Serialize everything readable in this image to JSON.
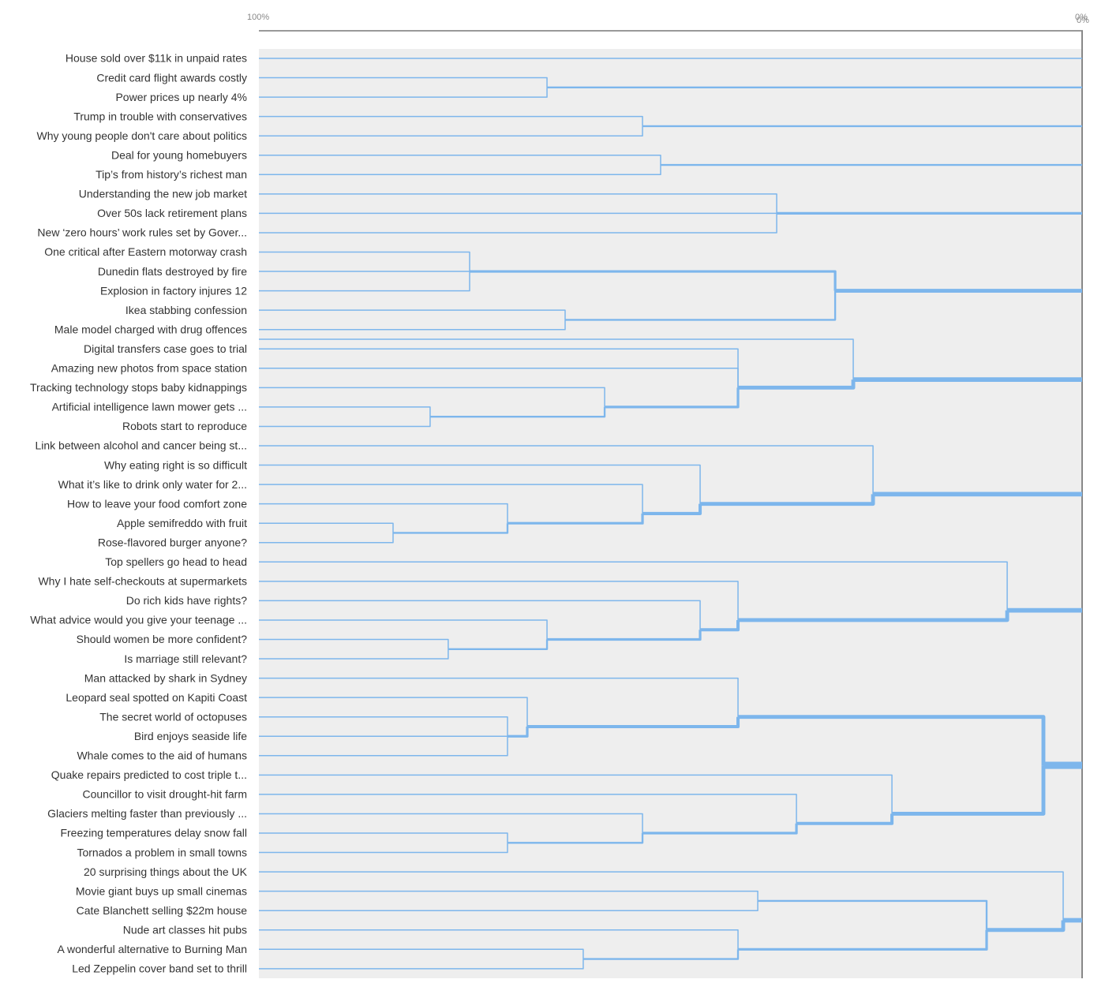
{
  "chart_data": {
    "type": "dendrogram",
    "axis": {
      "start_label": "100%",
      "end_labels": [
        "0%",
        "0%"
      ],
      "range": [
        100,
        0
      ]
    },
    "colors": {
      "link": "#7db6ec",
      "plot_background": "#eeeeee",
      "axis_line": "#999999",
      "label": "#333333"
    },
    "leaves": [
      "House sold over $11k in unpaid rates",
      "Credit card flight awards costly",
      "Power prices up nearly 4%",
      "Trump in trouble with conservatives",
      "Why young people don't care about politics",
      "Deal for young homebuyers",
      "Tip’s from history’s richest man",
      "Understanding the new job market",
      "Over 50s lack retirement plans",
      "New ‘zero hours’ work rules set by Gover...",
      "One critical after Eastern motorway crash",
      "Dunedin flats destroyed by fire",
      "Explosion in factory injures 12",
      "Ikea stabbing confession",
      "Male model charged with drug offences",
      "Digital transfers case goes to trial",
      "Amazing new photos from space station",
      "Tracking technology stops baby kidnappings",
      "Artificial intelligence lawn mower gets ...",
      "Robots start to reproduce",
      "Link between alcohol and cancer being st...",
      "Why eating right is so difficult",
      "What it’s like to drink only water for 2...",
      "How to leave your food comfort zone",
      "Apple semifreddo with fruit",
      "Rose-flavored burger anyone?",
      "Top spellers go head to head",
      "Why I hate self-checkouts at supermarkets",
      "Do rich kids have rights?",
      "What advice would you give your teenage ...",
      "Should women be more confident?",
      "Is marriage still relevant?",
      "Man attacked by shark in Sydney",
      "Leopard seal spotted on Kapiti Coast",
      "The secret world of octopuses",
      "Bird enjoys seaside life",
      "Whale comes to the aid of humans",
      "Quake repairs predicted to cost triple t...",
      "Councillor to visit drought-hit farm",
      "Glaciers melting faster than previously ...",
      "Freezing temperatures delay snow fall",
      "Tornados a problem in small towns",
      "20 surprising things about the UK",
      "Movie giant buys up small cinemas",
      "Cate Blanchett selling $22m house",
      "Nude art classes hit pubs",
      "A wonderful alternative to Burning Man",
      "Led Zeppelin cover band set to thrill"
    ],
    "merges": [
      {
        "id": "m1",
        "similarity": 65.0,
        "children": [
          1,
          2
        ]
      },
      {
        "id": "m2",
        "similarity": 53.4,
        "children": [
          3,
          4
        ]
      },
      {
        "id": "m3",
        "similarity": 51.2,
        "children": [
          5,
          6
        ]
      },
      {
        "id": "m4",
        "similarity": 37.1,
        "children": [
          7,
          8,
          9
        ]
      },
      {
        "id": "m5",
        "similarity": 74.4,
        "children": [
          10,
          11,
          12
        ]
      },
      {
        "id": "m6",
        "similarity": 62.8,
        "children": [
          13,
          14
        ]
      },
      {
        "id": "m7",
        "similarity": 30.0,
        "children": [
          "m5",
          "m6"
        ]
      },
      {
        "id": "m8",
        "similarity": 79.2,
        "children": [
          18,
          19
        ]
      },
      {
        "id": "m9",
        "similarity": 58.0,
        "children": [
          17,
          "m8"
        ]
      },
      {
        "id": "m10",
        "similarity": 41.8,
        "children": [
          15,
          16,
          "m9"
        ]
      },
      {
        "id": "m11",
        "similarity": 27.8,
        "children": [
          14.5,
          "m10"
        ]
      },
      {
        "id": "m12",
        "similarity": 83.7,
        "children": [
          24,
          25
        ]
      },
      {
        "id": "m13",
        "similarity": 69.8,
        "children": [
          23,
          "m12"
        ]
      },
      {
        "id": "m14",
        "similarity": 53.4,
        "children": [
          22,
          "m13"
        ]
      },
      {
        "id": "m15",
        "similarity": 46.4,
        "children": [
          21,
          "m14"
        ]
      },
      {
        "id": "m16",
        "similarity": 25.4,
        "children": [
          20,
          "m15"
        ]
      },
      {
        "id": "m17",
        "similarity": 77.0,
        "children": [
          30,
          31
        ]
      },
      {
        "id": "m18",
        "similarity": 65.0,
        "children": [
          29,
          "m17"
        ]
      },
      {
        "id": "m19",
        "similarity": 46.4,
        "children": [
          28,
          "m18"
        ]
      },
      {
        "id": "m20",
        "similarity": 41.8,
        "children": [
          27,
          "m19"
        ]
      },
      {
        "id": "m21",
        "similarity": 9.1,
        "children": [
          26,
          "m20"
        ]
      },
      {
        "id": "m22",
        "similarity": 69.8,
        "children": [
          34,
          35,
          36
        ]
      },
      {
        "id": "m23",
        "similarity": 67.4,
        "children": [
          33,
          "m22"
        ]
      },
      {
        "id": "m24",
        "similarity": 41.8,
        "children": [
          32,
          "m23"
        ]
      },
      {
        "id": "m25",
        "similarity": 69.8,
        "children": [
          40,
          41
        ]
      },
      {
        "id": "m26",
        "similarity": 53.4,
        "children": [
          39,
          "m25"
        ]
      },
      {
        "id": "m27",
        "similarity": 34.7,
        "children": [
          38,
          "m26"
        ]
      },
      {
        "id": "m28",
        "similarity": 23.1,
        "children": [
          37,
          "m27"
        ]
      },
      {
        "id": "m29",
        "similarity": 4.7,
        "children": [
          "m24",
          "m28"
        ]
      },
      {
        "id": "m30",
        "similarity": 39.4,
        "children": [
          43,
          44
        ]
      },
      {
        "id": "m31",
        "similarity": 60.6,
        "children": [
          46,
          47
        ]
      },
      {
        "id": "m32",
        "similarity": 41.8,
        "children": [
          45,
          "m31"
        ]
      },
      {
        "id": "m33",
        "similarity": 11.6,
        "children": [
          "m30",
          "m32"
        ]
      },
      {
        "id": "m34",
        "similarity": 2.3,
        "children": [
          42,
          "m33"
        ]
      }
    ]
  }
}
